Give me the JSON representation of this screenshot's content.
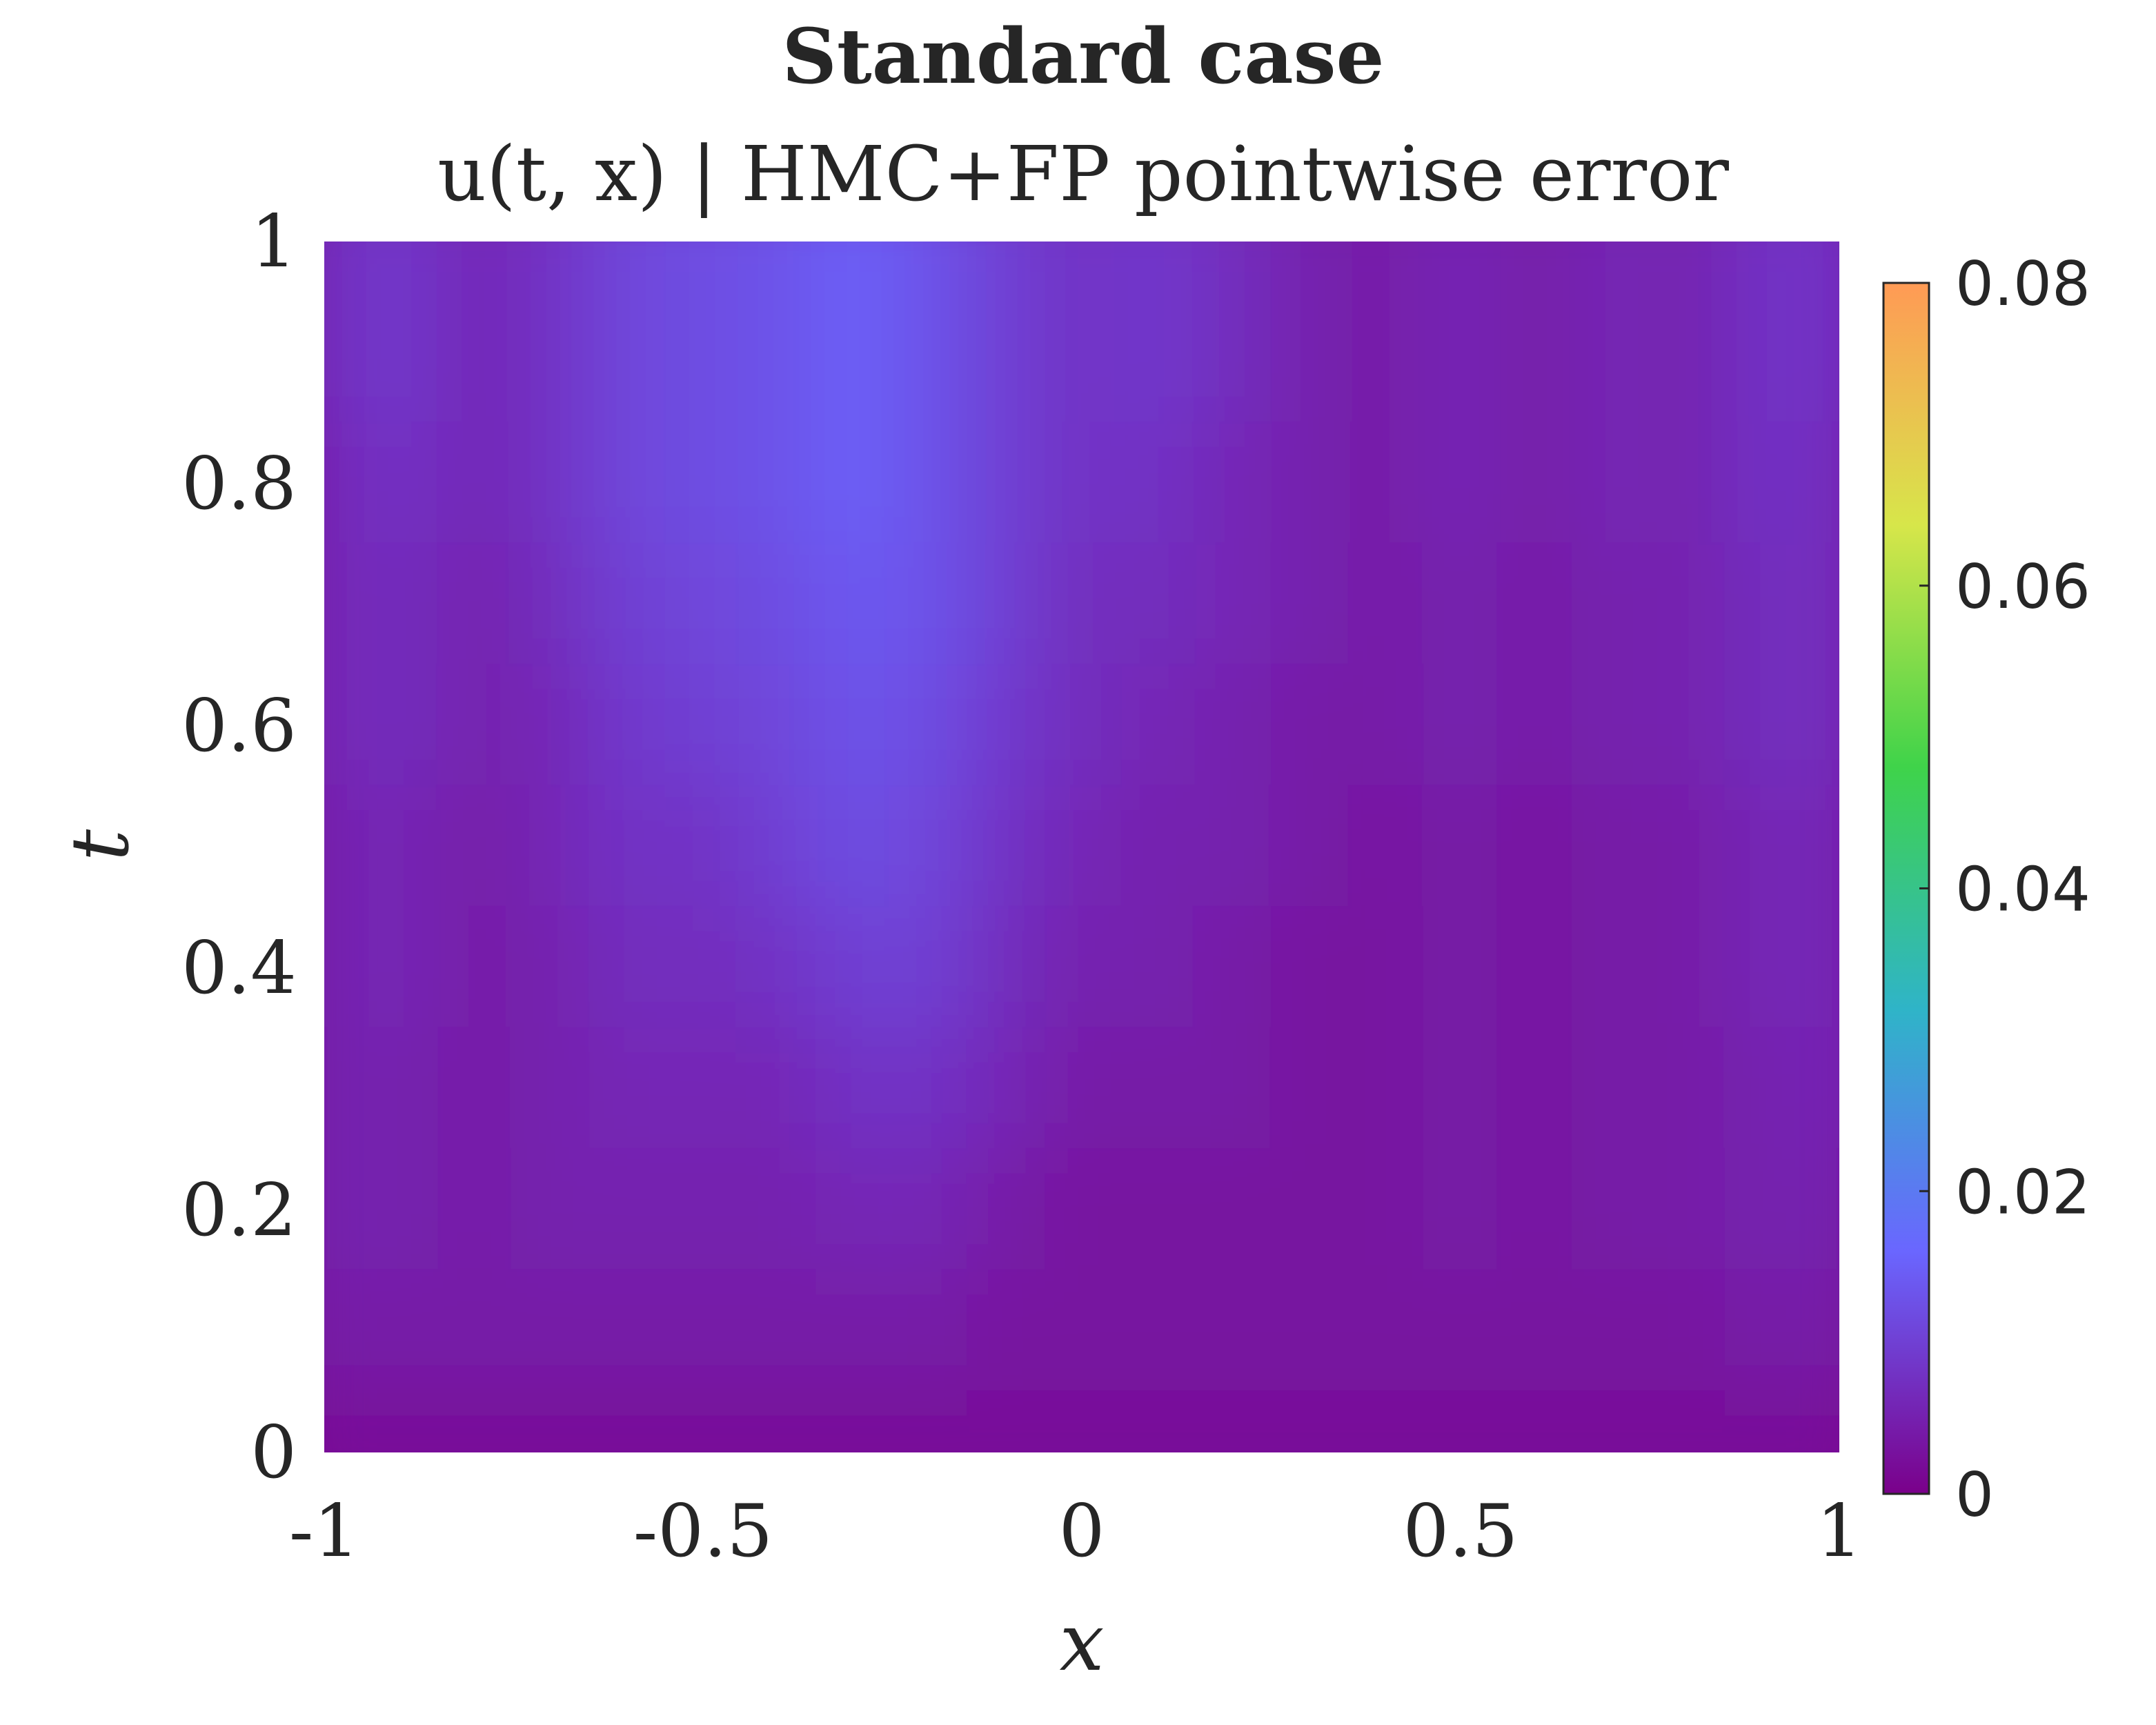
{
  "chart_data": {
    "type": "heatmap",
    "title": "Standard case",
    "subtitle": "u(t, x) | HMC+FP pointwise error",
    "xlabel": "x",
    "ylabel": "t",
    "xlim": [
      -1,
      1
    ],
    "ylim": [
      0,
      1
    ],
    "x_ticks": [
      -1,
      -0.5,
      0,
      0.5,
      1
    ],
    "x_tick_labels": [
      "-1",
      "-0.5",
      "0",
      "0.5",
      "1"
    ],
    "y_ticks": [
      0,
      0.2,
      0.4,
      0.6,
      0.8,
      1
    ],
    "y_tick_labels": [
      "0",
      "0.2",
      "0.4",
      "0.6",
      "0.8",
      "1"
    ],
    "colorbar": {
      "limits": [
        0,
        0.08
      ],
      "ticks": [
        0,
        0.02,
        0.04,
        0.06,
        0.08
      ],
      "tick_labels": [
        "0",
        "0.02",
        "0.04",
        "0.06",
        "0.08"
      ],
      "colormap": [
        "#7a008a",
        "#6a66ff",
        "#2fb4c8",
        "#3fd34a",
        "#d7e64a",
        "#ff9a55"
      ]
    },
    "x": [
      -1,
      -0.9,
      -0.8,
      -0.7,
      -0.6,
      -0.5,
      -0.4,
      -0.3,
      -0.2,
      -0.1,
      0,
      0.1,
      0.2,
      0.3,
      0.4,
      0.5,
      0.6,
      0.7,
      0.8,
      0.9,
      1
    ],
    "y": [
      1,
      0.9,
      0.8,
      0.7,
      0.6,
      0.5,
      0.4,
      0.3,
      0.2,
      0.1,
      0
    ],
    "z": [
      [
        0.007,
        0.009,
        0.006,
        0.008,
        0.011,
        0.012,
        0.013,
        0.015,
        0.013,
        0.01,
        0.008,
        0.009,
        0.007,
        0.005,
        0.004,
        0.006,
        0.004,
        0.006,
        0.005,
        0.008,
        0.008
      ],
      [
        0.007,
        0.009,
        0.006,
        0.008,
        0.011,
        0.012,
        0.013,
        0.015,
        0.013,
        0.01,
        0.008,
        0.009,
        0.007,
        0.005,
        0.004,
        0.006,
        0.004,
        0.006,
        0.005,
        0.008,
        0.008
      ],
      [
        0.006,
        0.008,
        0.006,
        0.008,
        0.011,
        0.012,
        0.013,
        0.015,
        0.013,
        0.01,
        0.008,
        0.008,
        0.006,
        0.005,
        0.004,
        0.006,
        0.004,
        0.006,
        0.005,
        0.008,
        0.007
      ],
      [
        0.006,
        0.007,
        0.005,
        0.007,
        0.01,
        0.011,
        0.012,
        0.014,
        0.013,
        0.01,
        0.007,
        0.007,
        0.006,
        0.005,
        0.004,
        0.005,
        0.004,
        0.005,
        0.005,
        0.007,
        0.007
      ],
      [
        0.006,
        0.007,
        0.005,
        0.006,
        0.009,
        0.01,
        0.011,
        0.013,
        0.012,
        0.009,
        0.007,
        0.006,
        0.005,
        0.004,
        0.004,
        0.005,
        0.004,
        0.005,
        0.005,
        0.007,
        0.007
      ],
      [
        0.005,
        0.006,
        0.004,
        0.006,
        0.008,
        0.008,
        0.01,
        0.012,
        0.011,
        0.008,
        0.006,
        0.005,
        0.005,
        0.004,
        0.003,
        0.004,
        0.003,
        0.004,
        0.004,
        0.006,
        0.006
      ],
      [
        0.005,
        0.006,
        0.004,
        0.005,
        0.007,
        0.007,
        0.008,
        0.01,
        0.01,
        0.007,
        0.005,
        0.005,
        0.004,
        0.003,
        0.003,
        0.004,
        0.003,
        0.004,
        0.004,
        0.006,
        0.006
      ],
      [
        0.005,
        0.005,
        0.004,
        0.005,
        0.006,
        0.006,
        0.006,
        0.008,
        0.008,
        0.006,
        0.004,
        0.004,
        0.004,
        0.003,
        0.003,
        0.004,
        0.003,
        0.004,
        0.004,
        0.005,
        0.006
      ],
      [
        0.005,
        0.005,
        0.004,
        0.005,
        0.005,
        0.005,
        0.005,
        0.006,
        0.006,
        0.004,
        0.003,
        0.003,
        0.003,
        0.003,
        0.003,
        0.004,
        0.003,
        0.004,
        0.004,
        0.005,
        0.005
      ],
      [
        0.004,
        0.004,
        0.004,
        0.004,
        0.004,
        0.004,
        0.004,
        0.004,
        0.004,
        0.003,
        0.003,
        0.003,
        0.003,
        0.003,
        0.003,
        0.003,
        0.003,
        0.003,
        0.003,
        0.004,
        0.004
      ],
      [
        0.002,
        0.002,
        0.002,
        0.002,
        0.002,
        0.002,
        0.002,
        0.002,
        0.002,
        0.002,
        0.002,
        0.002,
        0.002,
        0.002,
        0.002,
        0.002,
        0.002,
        0.002,
        0.002,
        0.002,
        0.002
      ]
    ]
  }
}
